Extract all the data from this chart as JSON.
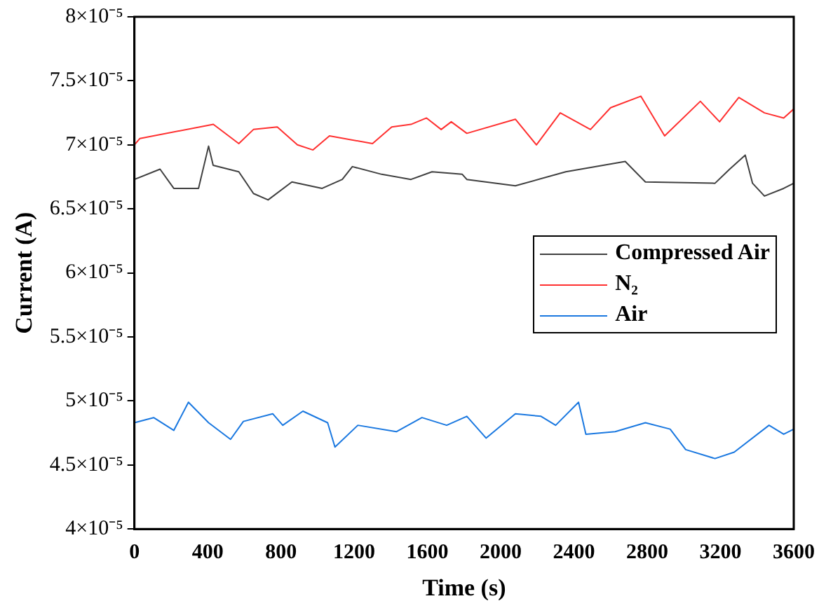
{
  "chart_data": {
    "type": "line",
    "xlabel": "Time (s)",
    "ylabel": "Current (A)",
    "xlim": [
      0,
      3600
    ],
    "xticks": [
      0,
      400,
      800,
      1200,
      1600,
      2000,
      2400,
      2800,
      3200,
      3600
    ],
    "ylim": [
      4e-05,
      8e-05
    ],
    "yticks": [
      {
        "value": 4e-05,
        "label": "4×10⁻⁵"
      },
      {
        "value": 4.5e-05,
        "label": "4.5×10⁻⁵"
      },
      {
        "value": 5e-05,
        "label": "5×10⁻⁵"
      },
      {
        "value": 5.5e-05,
        "label": "5.5×10⁻⁵"
      },
      {
        "value": 6e-05,
        "label": "6×10⁻⁵"
      },
      {
        "value": 6.5e-05,
        "label": "6.5×10⁻⁵"
      },
      {
        "value": 7e-05,
        "label": "7×10⁻⁵"
      },
      {
        "value": 7.5e-05,
        "label": "7.5×10⁻⁵"
      },
      {
        "value": 8e-05,
        "label": "8×10⁻⁵"
      }
    ],
    "legend": "right",
    "marker": "none",
    "line_style": "solid",
    "series": [
      {
        "name": "Compressed Air",
        "color": "#404040",
        "x": [
          0,
          140,
          215,
          350,
          405,
          430,
          570,
          650,
          730,
          860,
          1025,
          1135,
          1190,
          1350,
          1510,
          1625,
          1790,
          1815,
          2080,
          2355,
          2680,
          2790,
          3170,
          3250,
          3335,
          3375,
          3440,
          3545,
          3600
        ],
        "values": [
          6.73e-05,
          6.81e-05,
          6.66e-05,
          6.66e-05,
          6.99e-05,
          6.84e-05,
          6.79e-05,
          6.62e-05,
          6.57e-05,
          6.71e-05,
          6.66e-05,
          6.73e-05,
          6.83e-05,
          6.77e-05,
          6.73e-05,
          6.79e-05,
          6.77e-05,
          6.73e-05,
          6.68e-05,
          6.79e-05,
          6.87e-05,
          6.71e-05,
          6.7e-05,
          6.81e-05,
          6.92e-05,
          6.7e-05,
          6.6e-05,
          6.66e-05,
          6.7e-05
        ]
      },
      {
        "name": "N₂",
        "color": "#ff3030",
        "x": [
          0,
          30,
          431,
          570,
          650,
          780,
          890,
          975,
          1065,
          1300,
          1405,
          1510,
          1595,
          1675,
          1730,
          1815,
          2080,
          2195,
          2325,
          2490,
          2600,
          2765,
          2895,
          3090,
          3195,
          3300,
          3440,
          3545,
          3600
        ],
        "values": [
          7e-05,
          7.05e-05,
          7.16e-05,
          7.01e-05,
          7.12e-05,
          7.14e-05,
          7e-05,
          6.96e-05,
          7.07e-05,
          7.01e-05,
          7.14e-05,
          7.16e-05,
          7.21e-05,
          7.12e-05,
          7.18e-05,
          7.09e-05,
          7.2e-05,
          7e-05,
          7.25e-05,
          7.12e-05,
          7.29e-05,
          7.38e-05,
          7.07e-05,
          7.34e-05,
          7.18e-05,
          7.37e-05,
          7.25e-05,
          7.21e-05,
          7.28e-05
        ]
      },
      {
        "name": "Air",
        "color": "#1a78e0",
        "x": [
          0,
          105,
          215,
          295,
          405,
          525,
          595,
          755,
          810,
          920,
          1055,
          1095,
          1220,
          1430,
          1570,
          1705,
          1815,
          1920,
          2080,
          2220,
          2300,
          2425,
          2465,
          2625,
          2790,
          2925,
          3010,
          3170,
          3275,
          3465,
          3545,
          3600
        ],
        "values": [
          4.83e-05,
          4.87e-05,
          4.77e-05,
          4.99e-05,
          4.83e-05,
          4.7e-05,
          4.84e-05,
          4.9e-05,
          4.81e-05,
          4.92e-05,
          4.83e-05,
          4.64e-05,
          4.81e-05,
          4.76e-05,
          4.87e-05,
          4.81e-05,
          4.88e-05,
          4.71e-05,
          4.9e-05,
          4.88e-05,
          4.81e-05,
          4.99e-05,
          4.74e-05,
          4.76e-05,
          4.83e-05,
          4.78e-05,
          4.62e-05,
          4.55e-05,
          4.6e-05,
          4.81e-05,
          4.74e-05,
          4.78e-05
        ]
      }
    ]
  }
}
